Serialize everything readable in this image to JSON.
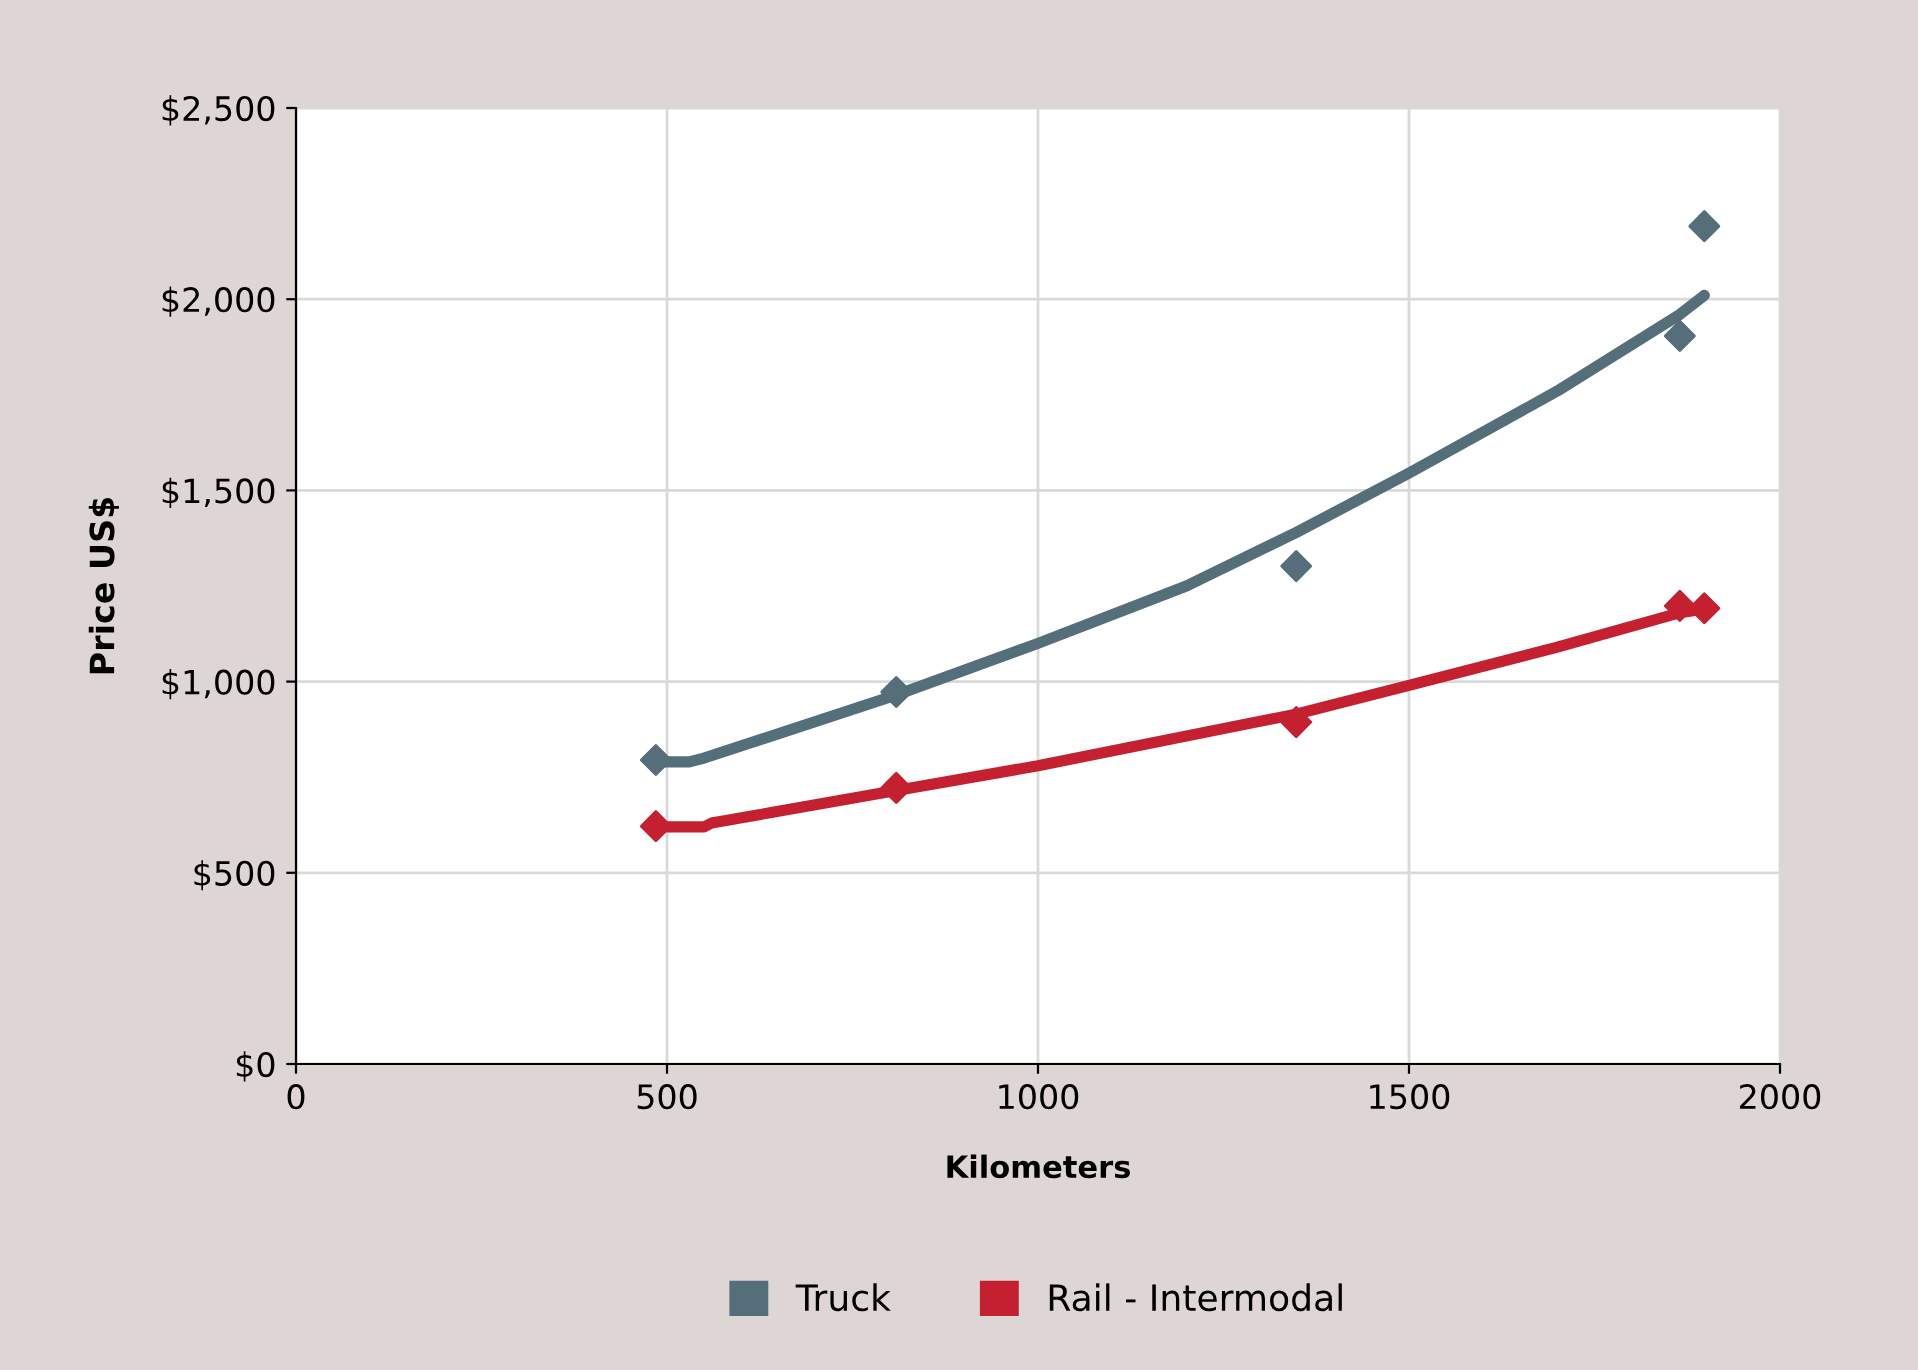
{
  "chart_data": {
    "type": "scatter",
    "xlabel": "Kilometers",
    "ylabel": "Price US$",
    "xlim": [
      0,
      2000
    ],
    "xticks": [
      0,
      500,
      1000,
      1500,
      2000
    ],
    "ylim": [
      0,
      2500
    ],
    "yticks": [
      {
        "value": 0,
        "label": "$0"
      },
      {
        "value": 500,
        "label": "$500"
      },
      {
        "value": 1000,
        "label": "$1,000"
      },
      {
        "value": 1500,
        "label": "$1,500"
      },
      {
        "value": 2000,
        "label": "$2,000"
      },
      {
        "value": 2500,
        "label": "$2,500"
      }
    ],
    "grid": true,
    "legend": "bottom",
    "series": [
      {
        "name": "Truck",
        "color": "#546e7a",
        "marker": "diamond",
        "x": [
          485,
          809,
          1348,
          1865,
          1898
        ],
        "values": [
          795,
          973,
          1302,
          1904,
          2191
        ]
      },
      {
        "name": "Rail - Intermodal",
        "color": "#c4202f",
        "marker": "diamond",
        "x": [
          485,
          809,
          1348,
          1865,
          1898
        ],
        "values": [
          622,
          722,
          894,
          1198,
          1192
        ]
      },
      {
        "color": "#546e7a",
        "type": "line",
        "marker": "none",
        "x": [
          485,
          530,
          550,
          809,
          1000,
          1200,
          1348,
          1500,
          1700,
          1865,
          1898
        ],
        "values": [
          790,
          790,
          800,
          965,
          1100,
          1250,
          1390,
          1545,
          1760,
          1960,
          2010
        ]
      },
      {
        "color": "#c4202f",
        "type": "line",
        "marker": "none",
        "x": [
          485,
          550,
          560,
          809,
          1000,
          1348,
          1500,
          1700,
          1865,
          1898
        ],
        "values": [
          620,
          620,
          630,
          715,
          780,
          915,
          990,
          1090,
          1180,
          1190
        ]
      }
    ]
  }
}
